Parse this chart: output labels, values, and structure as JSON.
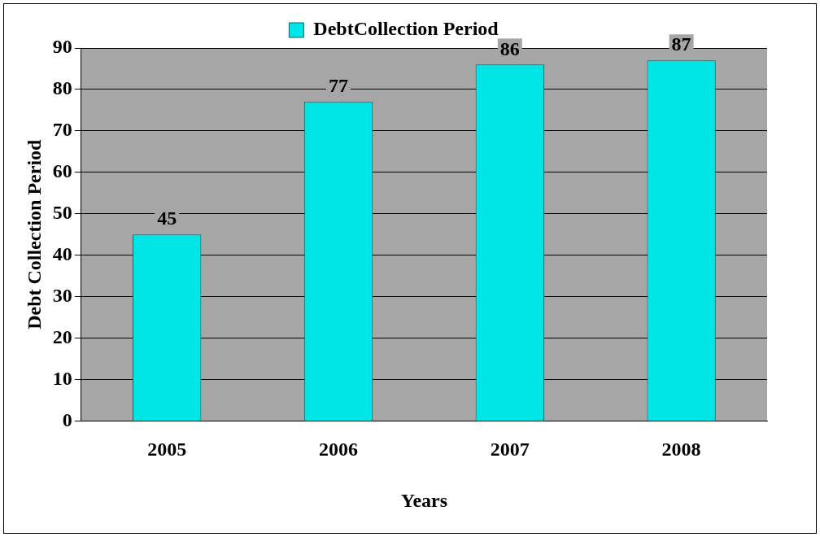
{
  "chart_data": {
    "type": "bar",
    "xlabel": "Years",
    "ylabel": "Debt Collection Period",
    "categories": [
      "2005",
      "2006",
      "2007",
      "2008"
    ],
    "series": [
      {
        "name": "DebtCollection Period",
        "color": "#00e5e5",
        "values": [
          45,
          77,
          86,
          87
        ]
      }
    ],
    "ylim": [
      0,
      90
    ],
    "yticks": [
      0,
      10,
      20,
      30,
      40,
      50,
      60,
      70,
      80,
      90
    ],
    "grid": "y",
    "legend": "top",
    "data_labels": true
  }
}
